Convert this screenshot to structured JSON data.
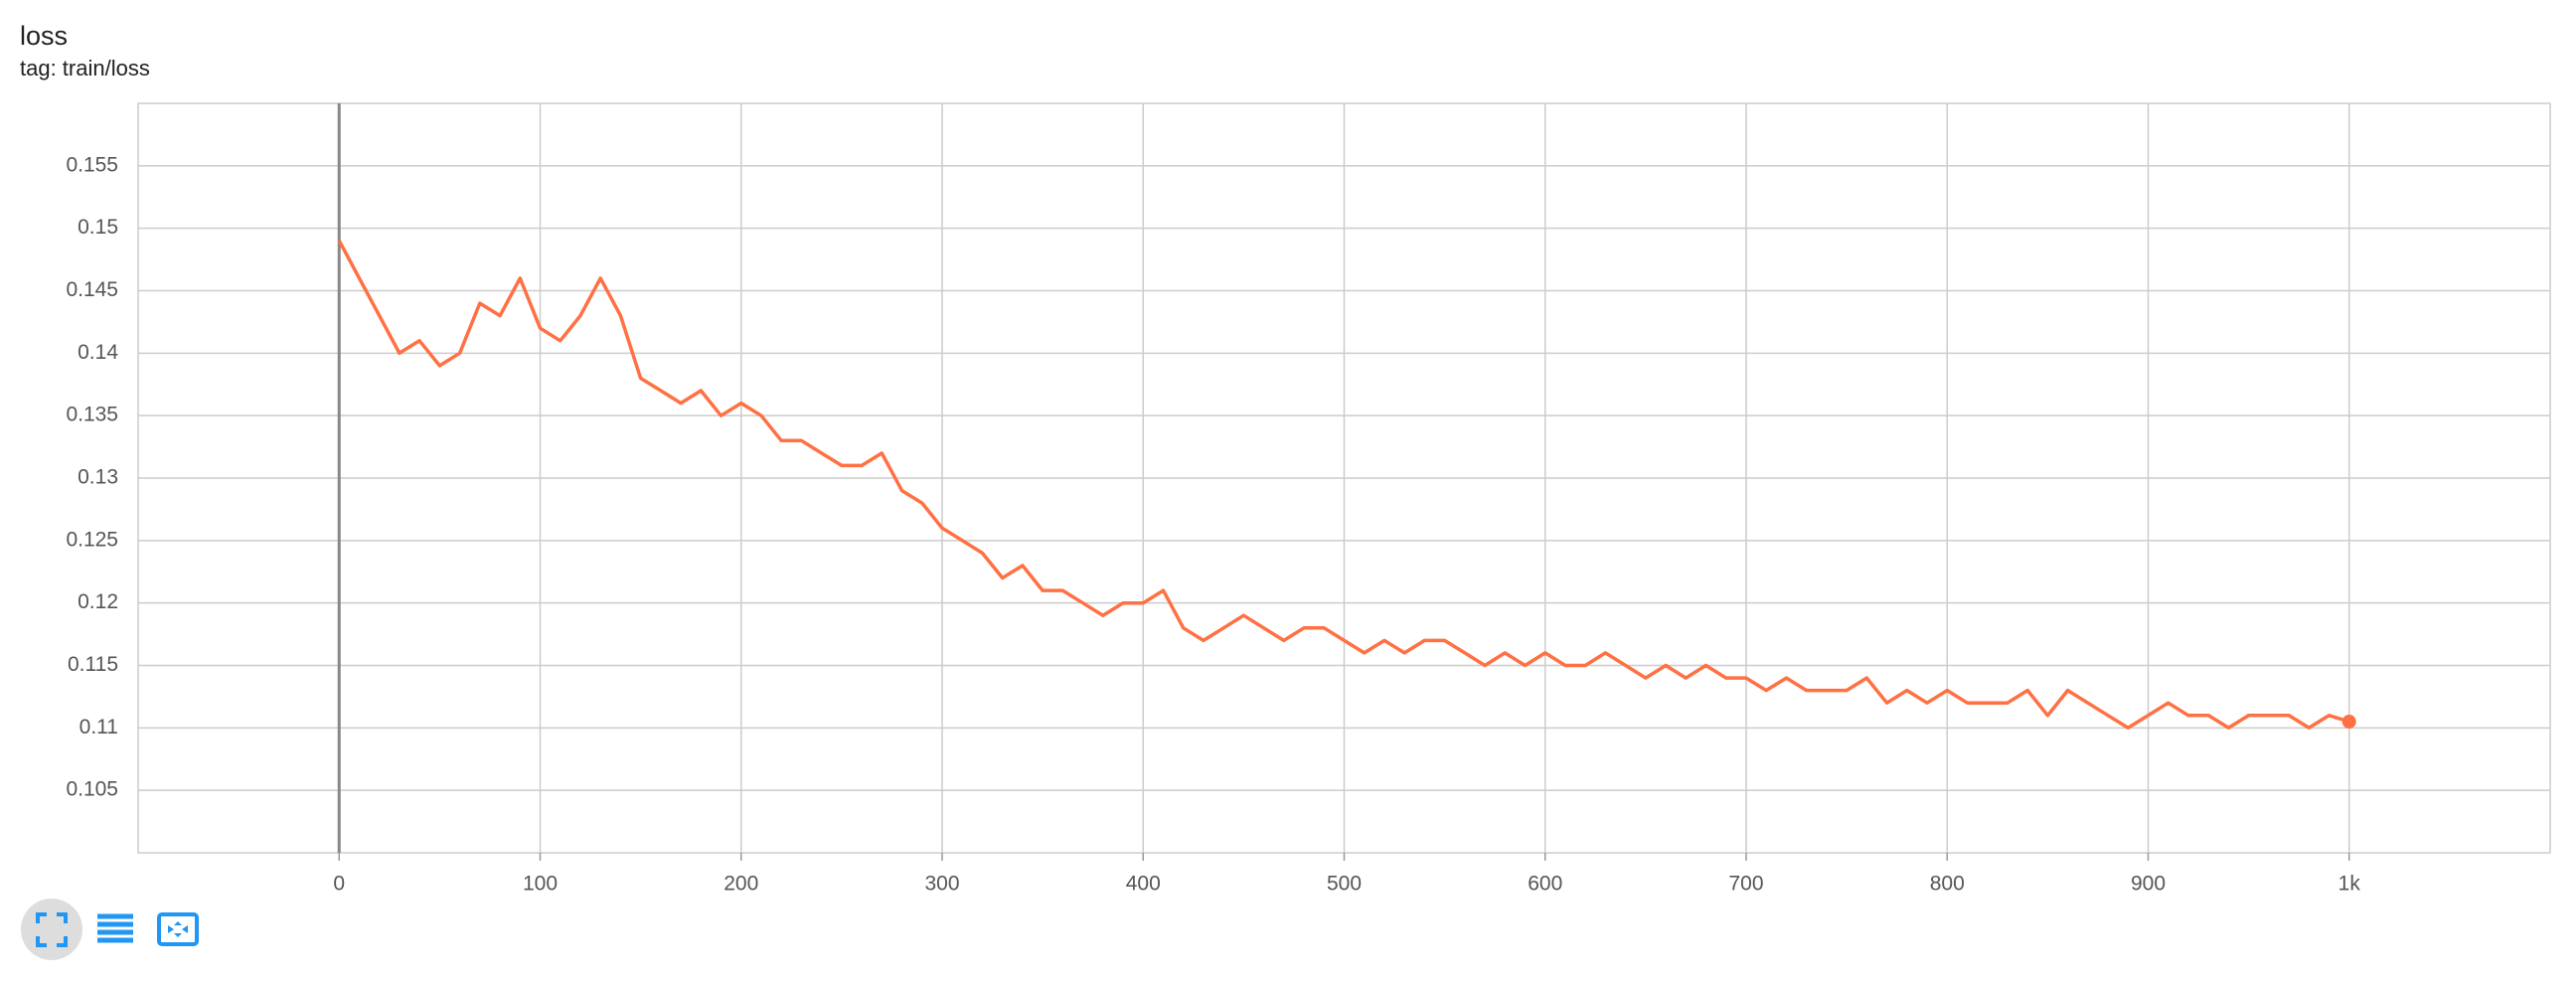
{
  "chart_data": {
    "type": "line",
    "title": "loss",
    "subtitle": "tag: train/loss",
    "x": [
      0,
      10,
      20,
      30,
      40,
      50,
      60,
      70,
      80,
      90,
      100,
      110,
      120,
      130,
      140,
      150,
      160,
      170,
      180,
      190,
      200,
      210,
      220,
      230,
      240,
      250,
      260,
      270,
      280,
      290,
      300,
      310,
      320,
      330,
      340,
      350,
      360,
      370,
      380,
      390,
      400,
      410,
      420,
      430,
      440,
      450,
      460,
      470,
      480,
      490,
      500,
      510,
      520,
      530,
      540,
      550,
      560,
      570,
      580,
      590,
      600,
      610,
      620,
      630,
      640,
      650,
      660,
      670,
      680,
      690,
      700,
      710,
      720,
      730,
      740,
      750,
      760,
      770,
      780,
      790,
      800,
      810,
      820,
      830,
      840,
      850,
      860,
      870,
      880,
      890,
      900,
      910,
      920,
      930,
      940,
      950,
      960,
      970,
      980,
      990,
      1000
    ],
    "series": [
      {
        "name": "train/loss",
        "color": "#ff7043",
        "values": [
          0.149,
          0.146,
          0.143,
          0.14,
          0.141,
          0.139,
          0.14,
          0.144,
          0.143,
          0.146,
          0.142,
          0.141,
          0.143,
          0.146,
          0.143,
          0.138,
          0.137,
          0.136,
          0.137,
          0.135,
          0.136,
          0.135,
          0.133,
          0.133,
          0.132,
          0.131,
          0.131,
          0.132,
          0.129,
          0.128,
          0.126,
          0.125,
          0.124,
          0.122,
          0.123,
          0.121,
          0.121,
          0.12,
          0.119,
          0.12,
          0.12,
          0.121,
          0.118,
          0.117,
          0.118,
          0.119,
          0.118,
          0.117,
          0.118,
          0.118,
          0.117,
          0.116,
          0.117,
          0.116,
          0.117,
          0.117,
          0.116,
          0.115,
          0.116,
          0.115,
          0.116,
          0.115,
          0.115,
          0.116,
          0.115,
          0.114,
          0.115,
          0.114,
          0.115,
          0.114,
          0.114,
          0.113,
          0.114,
          0.113,
          0.113,
          0.113,
          0.114,
          0.112,
          0.113,
          0.112,
          0.113,
          0.112,
          0.112,
          0.112,
          0.113,
          0.111,
          0.113,
          0.112,
          0.111,
          0.11,
          0.111,
          0.112,
          0.111,
          0.111,
          0.11,
          0.111,
          0.111,
          0.111,
          0.11,
          0.111,
          0.1105
        ]
      }
    ],
    "xlim": [
      -100,
      1100
    ],
    "xticks": [
      0,
      100,
      200,
      300,
      400,
      500,
      600,
      700,
      800,
      900,
      {
        "value": 1000,
        "label": "1k"
      }
    ],
    "ylim": [
      0.1,
      0.16
    ],
    "yticks": [
      0.105,
      0.11,
      0.115,
      0.12,
      0.125,
      0.13,
      0.135,
      0.14,
      0.145,
      0.15,
      0.155
    ],
    "grid": true
  }
}
